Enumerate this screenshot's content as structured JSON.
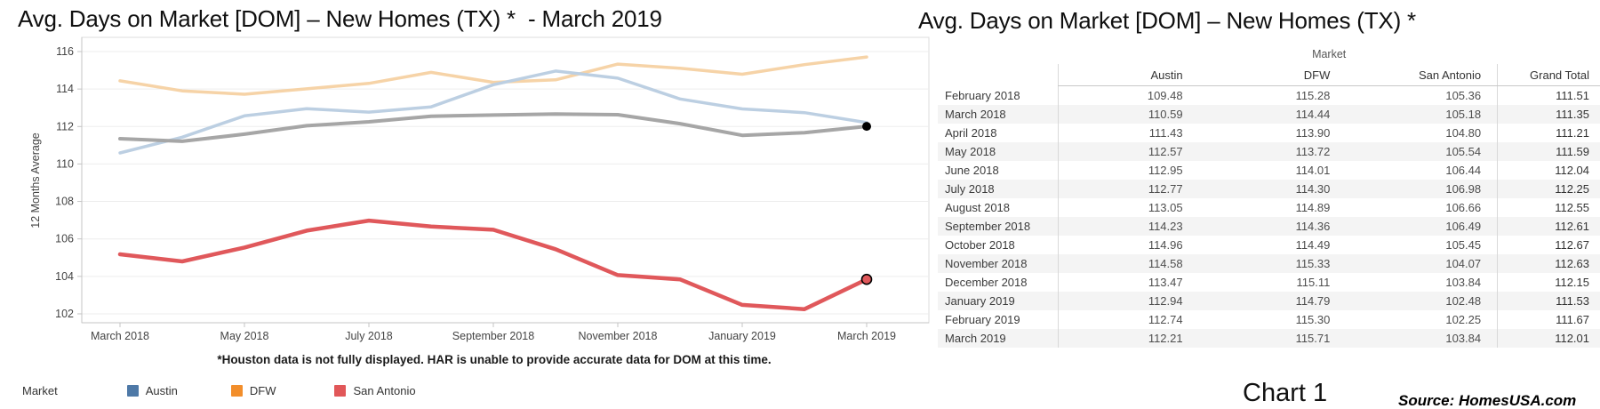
{
  "left_panel": {
    "title": "Avg. Days on Market [DOM] – New Homes (TX) *  - March 2019",
    "footnote": "*Houston data is not fully displayed. HAR is unable to provide accurate data for DOM at this time.",
    "legend": {
      "title": "Market",
      "items": [
        {
          "label": "Austin",
          "color": "#4e79a7"
        },
        {
          "label": "DFW",
          "color": "#f28e2b"
        },
        {
          "label": "San Antonio",
          "color": "#e15759"
        }
      ]
    }
  },
  "chart_data": {
    "type": "line",
    "title": "Avg. Days on Market [DOM] – New Homes (TX) *  - March 2019",
    "xlabel": "",
    "ylabel": "12 Months Average",
    "x": [
      "March 2018",
      "April 2018",
      "May 2018",
      "June 2018",
      "July 2018",
      "August 2018",
      "September 2018",
      "October 2018",
      "November 2018",
      "December 2018",
      "January 2019",
      "February 2019",
      "March 2019"
    ],
    "x_tick_labels": [
      "March 2018",
      "May 2018",
      "July 2018",
      "September 2018",
      "November 2018",
      "January 2019",
      "March 2019"
    ],
    "yticks": [
      102,
      104,
      106,
      108,
      110,
      112,
      114,
      116
    ],
    "ylim": [
      101.5,
      116.8
    ],
    "grid": "horizontal",
    "legend_position": "bottom",
    "series": [
      {
        "name": "DFW",
        "line_color": "#f6d3a7",
        "line_width": 3.5,
        "values": [
          114.44,
          113.9,
          113.72,
          114.01,
          114.3,
          114.89,
          114.36,
          114.49,
          115.33,
          115.11,
          114.79,
          115.3,
          115.71
        ]
      },
      {
        "name": "Austin",
        "line_color": "#bccfe2",
        "line_width": 3.5,
        "values": [
          110.59,
          111.43,
          112.57,
          112.95,
          112.77,
          113.05,
          114.23,
          114.96,
          114.58,
          113.47,
          112.94,
          112.74,
          112.21
        ]
      },
      {
        "name": "Grand Total",
        "line_color": "#a6a6a6",
        "line_width": 4,
        "values": [
          111.35,
          111.21,
          111.59,
          112.04,
          112.25,
          112.55,
          112.61,
          112.67,
          112.63,
          112.15,
          111.53,
          111.67,
          112.01
        ],
        "end_marker": {
          "fill": "#000000",
          "stroke": "none",
          "r": 5
        }
      },
      {
        "name": "San Antonio",
        "line_color": "#e0585b",
        "line_width": 4.5,
        "values": [
          105.18,
          104.8,
          105.54,
          106.44,
          106.98,
          106.66,
          106.49,
          105.45,
          104.07,
          103.84,
          102.48,
          102.25,
          103.84
        ],
        "end_marker": {
          "fill": "#e0585b",
          "stroke": "#000000",
          "r": 5.5
        }
      }
    ]
  },
  "right_panel": {
    "title": "Avg. Days on Market [DOM] – New Homes (TX) *",
    "table": {
      "group_header": "Market",
      "columns": [
        "Austin",
        "DFW",
        "San Antonio",
        "Grand Total"
      ],
      "rows": [
        {
          "label": "February 2018",
          "values": [
            "109.48",
            "115.28",
            "105.36",
            "111.51"
          ]
        },
        {
          "label": "March 2018",
          "values": [
            "110.59",
            "114.44",
            "105.18",
            "111.35"
          ]
        },
        {
          "label": "April 2018",
          "values": [
            "111.43",
            "113.90",
            "104.80",
            "111.21"
          ]
        },
        {
          "label": "May 2018",
          "values": [
            "112.57",
            "113.72",
            "105.54",
            "111.59"
          ]
        },
        {
          "label": "June 2018",
          "values": [
            "112.95",
            "114.01",
            "106.44",
            "112.04"
          ]
        },
        {
          "label": "July 2018",
          "values": [
            "112.77",
            "114.30",
            "106.98",
            "112.25"
          ]
        },
        {
          "label": "August 2018",
          "values": [
            "113.05",
            "114.89",
            "106.66",
            "112.55"
          ]
        },
        {
          "label": "September 2018",
          "values": [
            "114.23",
            "114.36",
            "106.49",
            "112.61"
          ]
        },
        {
          "label": "October 2018",
          "values": [
            "114.96",
            "114.49",
            "105.45",
            "112.67"
          ]
        },
        {
          "label": "November 2018",
          "values": [
            "114.58",
            "115.33",
            "104.07",
            "112.63"
          ]
        },
        {
          "label": "December 2018",
          "values": [
            "113.47",
            "115.11",
            "103.84",
            "112.15"
          ]
        },
        {
          "label": "January 2019",
          "values": [
            "112.94",
            "114.79",
            "102.48",
            "111.53"
          ]
        },
        {
          "label": "February 2019",
          "values": [
            "112.74",
            "115.30",
            "102.25",
            "111.67"
          ]
        },
        {
          "label": "March 2019",
          "values": [
            "112.21",
            "115.71",
            "103.84",
            "112.01"
          ]
        }
      ]
    },
    "caption": "Chart 1",
    "source": "Source: HomesUSA.com"
  }
}
